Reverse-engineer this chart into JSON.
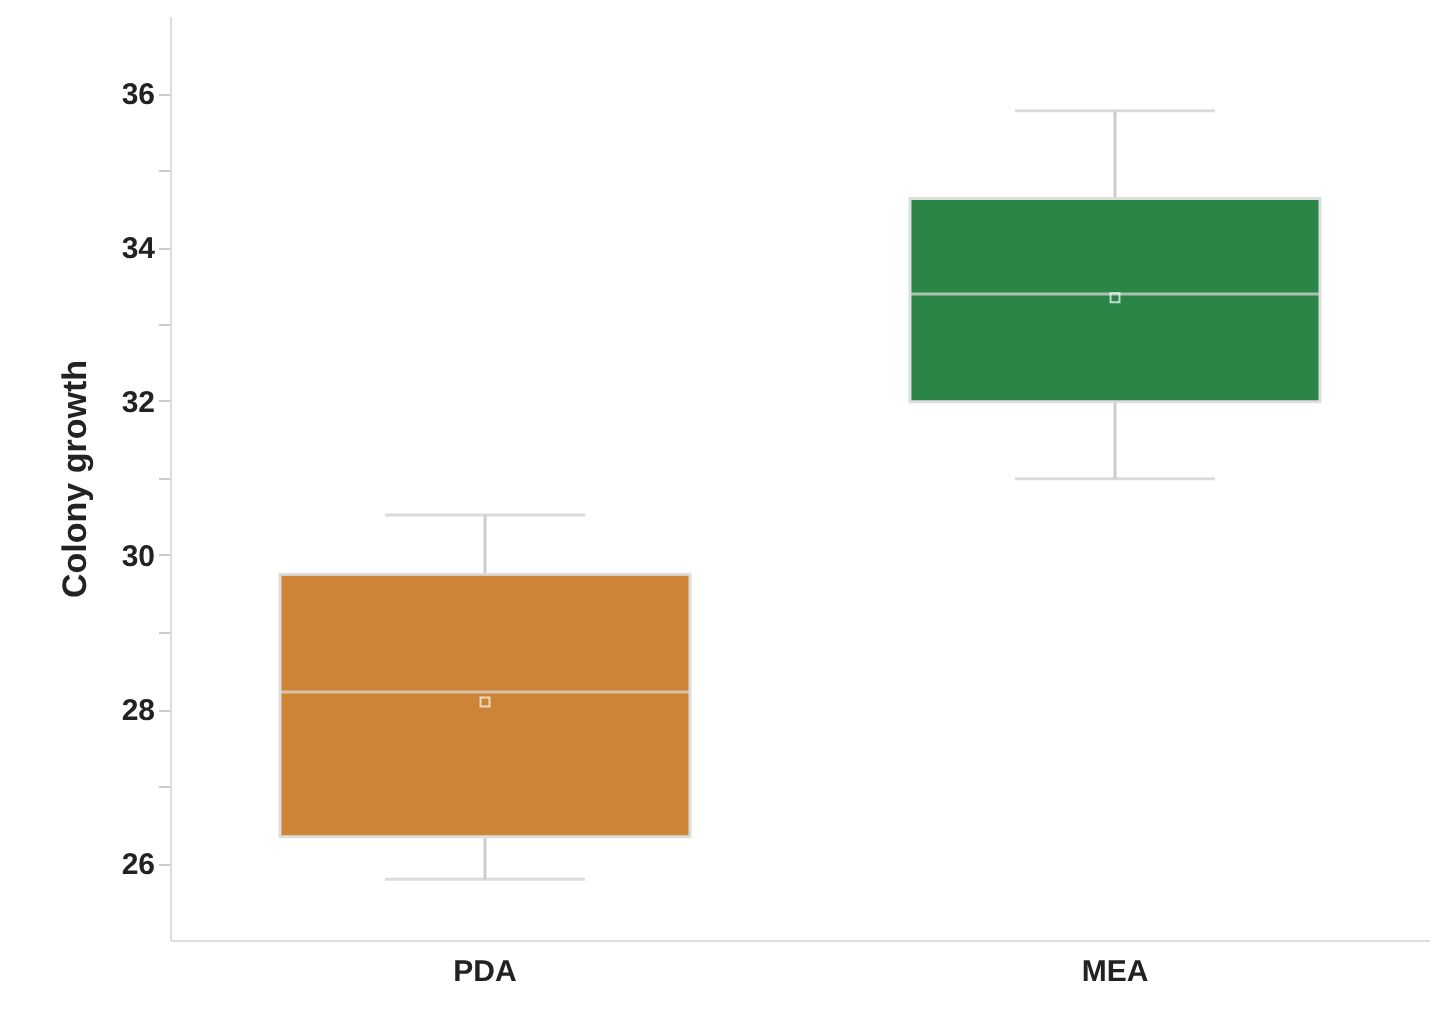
{
  "chart_data": {
    "type": "box",
    "ylabel": "Colony growth",
    "categories": [
      "PDA",
      "MEA"
    ],
    "colors": [
      "#cd8436",
      "#2a8547"
    ],
    "boxes": [
      {
        "low": 25.79,
        "q1": 26.34,
        "median": 28.22,
        "q3": 29.75,
        "high": 30.52,
        "mean": 28.09
      },
      {
        "low": 30.99,
        "q1": 31.99,
        "median": 33.39,
        "q3": 34.63,
        "high": 35.77,
        "mean": 33.34
      }
    ],
    "ylim": [
      25,
      37
    ],
    "yticks": [
      26,
      {
        "value": 27,
        "label": null
      },
      28,
      {
        "value": 29,
        "label": null
      },
      30,
      {
        "value": 31,
        "label": null
      },
      32,
      {
        "value": 33,
        "label": null
      },
      34,
      {
        "value": 35,
        "label": null
      },
      36
    ],
    "grid": false
  }
}
